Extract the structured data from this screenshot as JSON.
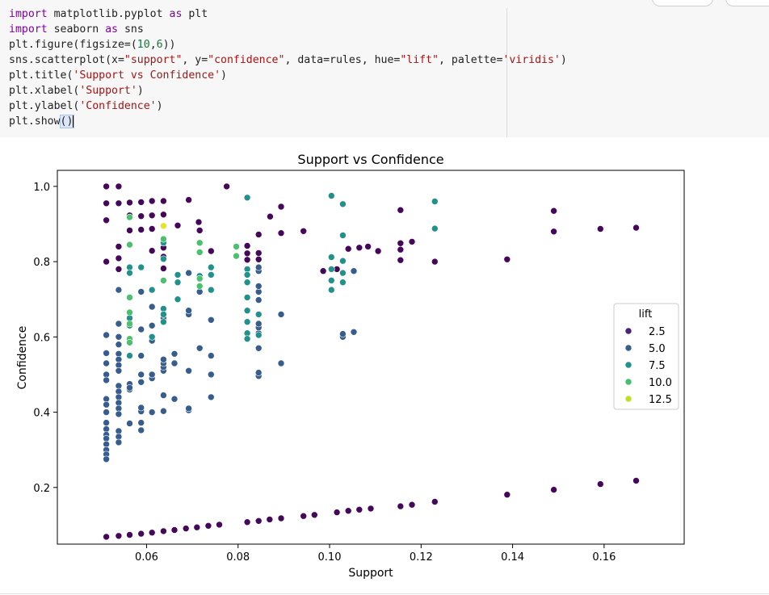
{
  "code_lines": [
    [
      [
        "kw",
        "import"
      ],
      [
        "op",
        " matplotlib.pyplot "
      ],
      [
        "kw",
        "as"
      ],
      [
        "op",
        " plt"
      ]
    ],
    [
      [
        "kw",
        "import"
      ],
      [
        "op",
        " seaborn "
      ],
      [
        "kw",
        "as"
      ],
      [
        "op",
        " sns"
      ]
    ],
    [
      [
        "op",
        "plt.figure(figsize=("
      ],
      [
        "num",
        "10"
      ],
      [
        "op",
        ","
      ],
      [
        "num",
        "6"
      ],
      [
        "op",
        "))"
      ]
    ],
    [
      [
        "op",
        "sns.scatterplot(x="
      ],
      [
        "str",
        "\"support\""
      ],
      [
        "op",
        ", y="
      ],
      [
        "str",
        "\"confidence\""
      ],
      [
        "op",
        ", data=rules, hue="
      ],
      [
        "str",
        "\"lift\""
      ],
      [
        "op",
        ", palette="
      ],
      [
        "str",
        "'viridis'"
      ],
      [
        "op",
        ")"
      ]
    ],
    [
      [
        "op",
        "plt.title("
      ],
      [
        "str",
        "'Support vs Confidence'"
      ],
      [
        "op",
        ")"
      ]
    ],
    [
      [
        "op",
        "plt.xlabel("
      ],
      [
        "str",
        "'Support'"
      ],
      [
        "op",
        ")"
      ]
    ],
    [
      [
        "op",
        "plt.ylabel("
      ],
      [
        "str",
        "'Confidence'"
      ],
      [
        "op",
        ")"
      ]
    ],
    [
      [
        "op",
        "plt.show"
      ],
      [
        "hl",
        "()"
      ]
    ]
  ],
  "chart_data": {
    "type": "scatter",
    "title": "Support vs Confidence",
    "xlabel": "Support",
    "ylabel": "Confidence",
    "xlim": [
      0.0405,
      0.1775
    ],
    "ylim": [
      0.0494,
      1.0426
    ],
    "x_ticks": [
      0.06,
      0.08,
      0.1,
      0.12,
      0.14,
      0.16
    ],
    "x_tick_labels": [
      "0.06",
      "0.08",
      "0.10",
      "0.12",
      "0.14",
      "0.16"
    ],
    "y_ticks": [
      0.2,
      0.4,
      0.6,
      0.8,
      1.0
    ],
    "y_tick_labels": [
      "0.2",
      "0.4",
      "0.6",
      "0.8",
      "1.0"
    ],
    "grid": false,
    "palette": "viridis",
    "legend": {
      "title": "lift",
      "position": "right",
      "entries": [
        {
          "label": "2.5",
          "color": "#482475"
        },
        {
          "label": "5.0",
          "color": "#355f8d"
        },
        {
          "label": "7.5",
          "color": "#21918c"
        },
        {
          "label": "10.0",
          "color": "#44bf70"
        },
        {
          "label": "12.5",
          "color": "#bddf26"
        }
      ]
    },
    "points": [
      [
        0.0512,
        0.069,
        1.2
      ],
      [
        0.0539,
        0.0712,
        1.2
      ],
      [
        0.0563,
        0.074,
        1.2
      ],
      [
        0.0588,
        0.077,
        1.2
      ],
      [
        0.0612,
        0.08,
        1.2
      ],
      [
        0.0637,
        0.084,
        1.2
      ],
      [
        0.0661,
        0.087,
        1.2
      ],
      [
        0.0686,
        0.091,
        1.2
      ],
      [
        0.071,
        0.094,
        1.2
      ],
      [
        0.0735,
        0.098,
        1.2
      ],
      [
        0.0759,
        0.101,
        1.2
      ],
      [
        0.082,
        0.108,
        1.2
      ],
      [
        0.0845,
        0.111,
        1.2
      ],
      [
        0.0869,
        0.115,
        1.2
      ],
      [
        0.0894,
        0.118,
        1.2
      ],
      [
        0.0943,
        0.124,
        1.2
      ],
      [
        0.0967,
        0.127,
        1.2
      ],
      [
        0.1016,
        0.134,
        1.2
      ],
      [
        0.1041,
        0.138,
        1.2
      ],
      [
        0.1065,
        0.141,
        1.2
      ],
      [
        0.109,
        0.144,
        1.2
      ],
      [
        0.1155,
        0.15,
        1.2
      ],
      [
        0.118,
        0.154,
        1.2
      ],
      [
        0.123,
        0.162,
        1.2
      ],
      [
        0.1388,
        0.181,
        1.2
      ],
      [
        0.149,
        0.194,
        1.2
      ],
      [
        0.1592,
        0.209,
        1.2
      ],
      [
        0.167,
        0.218,
        1.2
      ],
      [
        0.0512,
        1.0,
        1.2
      ],
      [
        0.0539,
        1.0,
        1.2
      ],
      [
        0.0512,
        0.955,
        1.2
      ],
      [
        0.0539,
        0.955,
        1.2
      ],
      [
        0.0563,
        0.957,
        1.2
      ],
      [
        0.0588,
        0.958,
        1.2
      ],
      [
        0.0612,
        0.961,
        1.2
      ],
      [
        0.0637,
        0.961,
        1.2
      ],
      [
        0.0692,
        0.964,
        1.2
      ],
      [
        0.0775,
        1.0,
        1.2
      ],
      [
        0.0512,
        0.91,
        1.2
      ],
      [
        0.0563,
        0.923,
        1.2
      ],
      [
        0.0588,
        0.921,
        1.2
      ],
      [
        0.0612,
        0.923,
        1.2
      ],
      [
        0.0637,
        0.925,
        1.2
      ],
      [
        0.0563,
        0.883,
        1.2
      ],
      [
        0.0588,
        0.885,
        1.2
      ],
      [
        0.0612,
        0.887,
        1.2
      ],
      [
        0.0668,
        0.896,
        1.2
      ],
      [
        0.0714,
        0.905,
        1.2
      ],
      [
        0.0716,
        0.883,
        1.2
      ],
      [
        0.0539,
        0.84,
        1.2
      ],
      [
        0.0637,
        0.837,
        1.2
      ],
      [
        0.0612,
        0.829,
        1.2
      ],
      [
        0.0741,
        0.828,
        1.2
      ],
      [
        0.0512,
        0.8,
        1.2
      ],
      [
        0.0539,
        0.809,
        1.2
      ],
      [
        0.0637,
        0.813,
        1.2
      ],
      [
        0.0539,
        0.78,
        1.2
      ],
      [
        0.0637,
        0.782,
        1.2
      ],
      [
        0.082,
        0.842,
        1.2
      ],
      [
        0.082,
        0.822,
        1.2
      ],
      [
        0.0845,
        0.823,
        1.2
      ],
      [
        0.0845,
        0.806,
        1.2
      ],
      [
        0.082,
        0.805,
        1.2
      ],
      [
        0.0845,
        0.872,
        1.2
      ],
      [
        0.087,
        0.92,
        1.2
      ],
      [
        0.0894,
        0.946,
        1.2
      ],
      [
        0.0894,
        0.876,
        1.2
      ],
      [
        0.0943,
        0.881,
        1.2
      ],
      [
        0.0986,
        0.775,
        1.2
      ],
      [
        0.1016,
        0.78,
        1.2
      ],
      [
        0.1041,
        0.834,
        1.2
      ],
      [
        0.1065,
        0.837,
        1.2
      ],
      [
        0.1084,
        0.84,
        1.2
      ],
      [
        0.1106,
        0.828,
        1.2
      ],
      [
        0.1155,
        0.937,
        1.2
      ],
      [
        0.1155,
        0.849,
        1.2
      ],
      [
        0.1155,
        0.832,
        1.2
      ],
      [
        0.1155,
        0.804,
        1.2
      ],
      [
        0.118,
        0.853,
        1.2
      ],
      [
        0.123,
        0.8,
        1.2
      ],
      [
        0.1388,
        0.806,
        1.2
      ],
      [
        0.149,
        0.935,
        1.2
      ],
      [
        0.149,
        0.88,
        1.2
      ],
      [
        0.1592,
        0.887,
        1.2
      ],
      [
        0.167,
        0.89,
        1.2
      ],
      [
        0.0512,
        0.605,
        4.5
      ],
      [
        0.0539,
        0.6,
        4.5
      ],
      [
        0.0539,
        0.58,
        4.5
      ],
      [
        0.0512,
        0.557,
        4.5
      ],
      [
        0.0539,
        0.555,
        4.5
      ],
      [
        0.0512,
        0.53,
        4.5
      ],
      [
        0.0539,
        0.54,
        4.5
      ],
      [
        0.0539,
        0.525,
        4.5
      ],
      [
        0.0539,
        0.51,
        4.5
      ],
      [
        0.0512,
        0.5,
        4.5
      ],
      [
        0.0512,
        0.485,
        4.5
      ],
      [
        0.0539,
        0.47,
        4.5
      ],
      [
        0.0539,
        0.455,
        4.5
      ],
      [
        0.0539,
        0.44,
        4.5
      ],
      [
        0.0539,
        0.425,
        4.5
      ],
      [
        0.0512,
        0.435,
        4.5
      ],
      [
        0.0512,
        0.42,
        4.5
      ],
      [
        0.0512,
        0.4,
        4.5
      ],
      [
        0.0539,
        0.41,
        4.5
      ],
      [
        0.0539,
        0.395,
        4.5
      ],
      [
        0.0512,
        0.372,
        4.5
      ],
      [
        0.0512,
        0.355,
        4.5
      ],
      [
        0.0512,
        0.34,
        4.5
      ],
      [
        0.0512,
        0.33,
        4.5
      ],
      [
        0.0512,
        0.315,
        4.5
      ],
      [
        0.0512,
        0.3,
        4.5
      ],
      [
        0.0512,
        0.288,
        4.5
      ],
      [
        0.0512,
        0.275,
        4.5
      ],
      [
        0.0539,
        0.35,
        4.5
      ],
      [
        0.0539,
        0.335,
        4.5
      ],
      [
        0.0539,
        0.32,
        4.5
      ],
      [
        0.0563,
        0.37,
        4.5
      ],
      [
        0.0588,
        0.372,
        4.5
      ],
      [
        0.0588,
        0.352,
        4.5
      ],
      [
        0.0588,
        0.402,
        4.5
      ],
      [
        0.0588,
        0.412,
        4.5
      ],
      [
        0.0612,
        0.4,
        4.5
      ],
      [
        0.0637,
        0.403,
        4.5
      ],
      [
        0.0563,
        0.46,
        4.5
      ],
      [
        0.0563,
        0.475,
        4.5
      ],
      [
        0.0563,
        0.465,
        4.5
      ],
      [
        0.0588,
        0.48,
        4.5
      ],
      [
        0.0588,
        0.5,
        4.5
      ],
      [
        0.0612,
        0.49,
        4.5
      ],
      [
        0.0612,
        0.5,
        4.5
      ],
      [
        0.0637,
        0.445,
        4.5
      ],
      [
        0.0661,
        0.435,
        4.5
      ],
      [
        0.0692,
        0.405,
        4.5
      ],
      [
        0.0692,
        0.41,
        4.5
      ],
      [
        0.0741,
        0.44,
        4.5
      ],
      [
        0.0637,
        0.51,
        4.5
      ],
      [
        0.0637,
        0.52,
        4.5
      ],
      [
        0.0637,
        0.53,
        4.5
      ],
      [
        0.0637,
        0.54,
        4.5
      ],
      [
        0.0661,
        0.53,
        4.5
      ],
      [
        0.0661,
        0.555,
        4.5
      ],
      [
        0.0692,
        0.51,
        4.5
      ],
      [
        0.0741,
        0.5,
        4.5
      ],
      [
        0.0741,
        0.55,
        4.5
      ],
      [
        0.0716,
        0.57,
        4.5
      ],
      [
        0.0588,
        0.55,
        4.5
      ],
      [
        0.0612,
        0.59,
        4.5
      ],
      [
        0.0539,
        0.635,
        4.5
      ],
      [
        0.0563,
        0.63,
        4.5
      ],
      [
        0.0588,
        0.62,
        4.5
      ],
      [
        0.0612,
        0.63,
        4.5
      ],
      [
        0.0539,
        0.725,
        4.5
      ],
      [
        0.0588,
        0.72,
        4.5
      ],
      [
        0.0612,
        0.68,
        4.5
      ],
      [
        0.0637,
        0.65,
        4.5
      ],
      [
        0.0692,
        0.66,
        4.5
      ],
      [
        0.0692,
        0.67,
        4.5
      ],
      [
        0.0692,
        0.77,
        4.5
      ],
      [
        0.0716,
        0.72,
        4.5
      ],
      [
        0.0741,
        0.645,
        4.5
      ],
      [
        0.0894,
        0.66,
        4.5
      ],
      [
        0.0894,
        0.53,
        4.5
      ],
      [
        0.0845,
        0.496,
        4.5
      ],
      [
        0.0845,
        0.505,
        4.5
      ],
      [
        0.0845,
        0.57,
        4.5
      ],
      [
        0.0845,
        0.61,
        4.5
      ],
      [
        0.0845,
        0.625,
        4.5
      ],
      [
        0.0845,
        0.635,
        4.5
      ],
      [
        0.0845,
        0.698,
        4.5
      ],
      [
        0.0845,
        0.72,
        4.5
      ],
      [
        0.0845,
        0.735,
        4.5
      ],
      [
        0.0845,
        0.775,
        4.5
      ],
      [
        0.0845,
        0.785,
        4.5
      ],
      [
        0.1029,
        0.6,
        4.5
      ],
      [
        0.1029,
        0.608,
        4.5
      ],
      [
        0.1053,
        0.613,
        4.5
      ],
      [
        0.1053,
        0.775,
        4.5
      ],
      [
        0.0563,
        0.785,
        7.0
      ],
      [
        0.0563,
        0.77,
        7.0
      ],
      [
        0.0588,
        0.785,
        7.0
      ],
      [
        0.0563,
        0.65,
        7.0
      ],
      [
        0.0563,
        0.63,
        7.0
      ],
      [
        0.0563,
        0.55,
        7.0
      ],
      [
        0.0612,
        0.725,
        7.0
      ],
      [
        0.0612,
        0.6,
        7.0
      ],
      [
        0.0637,
        0.85,
        7.0
      ],
      [
        0.0637,
        0.807,
        7.0
      ],
      [
        0.0637,
        0.675,
        7.0
      ],
      [
        0.0637,
        0.66,
        7.0
      ],
      [
        0.0637,
        0.64,
        7.0
      ],
      [
        0.0668,
        0.765,
        7.0
      ],
      [
        0.0668,
        0.745,
        7.0
      ],
      [
        0.0668,
        0.7,
        7.0
      ],
      [
        0.0716,
        0.762,
        7.0
      ],
      [
        0.0741,
        0.785,
        7.0
      ],
      [
        0.0741,
        0.765,
        7.0
      ],
      [
        0.0741,
        0.725,
        7.0
      ],
      [
        0.082,
        0.97,
        7.0
      ],
      [
        0.082,
        0.78,
        7.0
      ],
      [
        0.082,
        0.765,
        7.0
      ],
      [
        0.082,
        0.745,
        7.0
      ],
      [
        0.082,
        0.705,
        7.0
      ],
      [
        0.082,
        0.67,
        7.0
      ],
      [
        0.082,
        0.64,
        7.0
      ],
      [
        0.082,
        0.61,
        7.0
      ],
      [
        0.082,
        0.595,
        7.0
      ],
      [
        0.0845,
        0.66,
        7.0
      ],
      [
        0.0845,
        0.605,
        7.0
      ],
      [
        0.1004,
        0.975,
        7.0
      ],
      [
        0.1004,
        0.812,
        7.0
      ],
      [
        0.1004,
        0.78,
        7.0
      ],
      [
        0.1004,
        0.75,
        7.0
      ],
      [
        0.1004,
        0.725,
        7.0
      ],
      [
        0.1029,
        0.953,
        7.0
      ],
      [
        0.1029,
        0.87,
        7.0
      ],
      [
        0.1029,
        0.802,
        7.0
      ],
      [
        0.1029,
        0.77,
        7.0
      ],
      [
        0.1029,
        0.745,
        7.0
      ],
      [
        0.123,
        0.96,
        7.0
      ],
      [
        0.123,
        0.888,
        7.0
      ],
      [
        0.0563,
        0.918,
        9.5
      ],
      [
        0.0563,
        0.845,
        9.5
      ],
      [
        0.0563,
        0.705,
        9.5
      ],
      [
        0.0563,
        0.665,
        9.5
      ],
      [
        0.0563,
        0.635,
        9.5
      ],
      [
        0.0563,
        0.595,
        9.5
      ],
      [
        0.0563,
        0.585,
        9.5
      ],
      [
        0.0637,
        0.86,
        9.5
      ],
      [
        0.0637,
        0.75,
        9.5
      ],
      [
        0.0716,
        0.85,
        9.5
      ],
      [
        0.0716,
        0.825,
        9.5
      ],
      [
        0.0716,
        0.755,
        9.5
      ],
      [
        0.0716,
        0.735,
        9.5
      ],
      [
        0.0796,
        0.84,
        9.5
      ],
      [
        0.0796,
        0.815,
        9.5
      ],
      [
        0.0637,
        0.895,
        12.5
      ]
    ]
  }
}
